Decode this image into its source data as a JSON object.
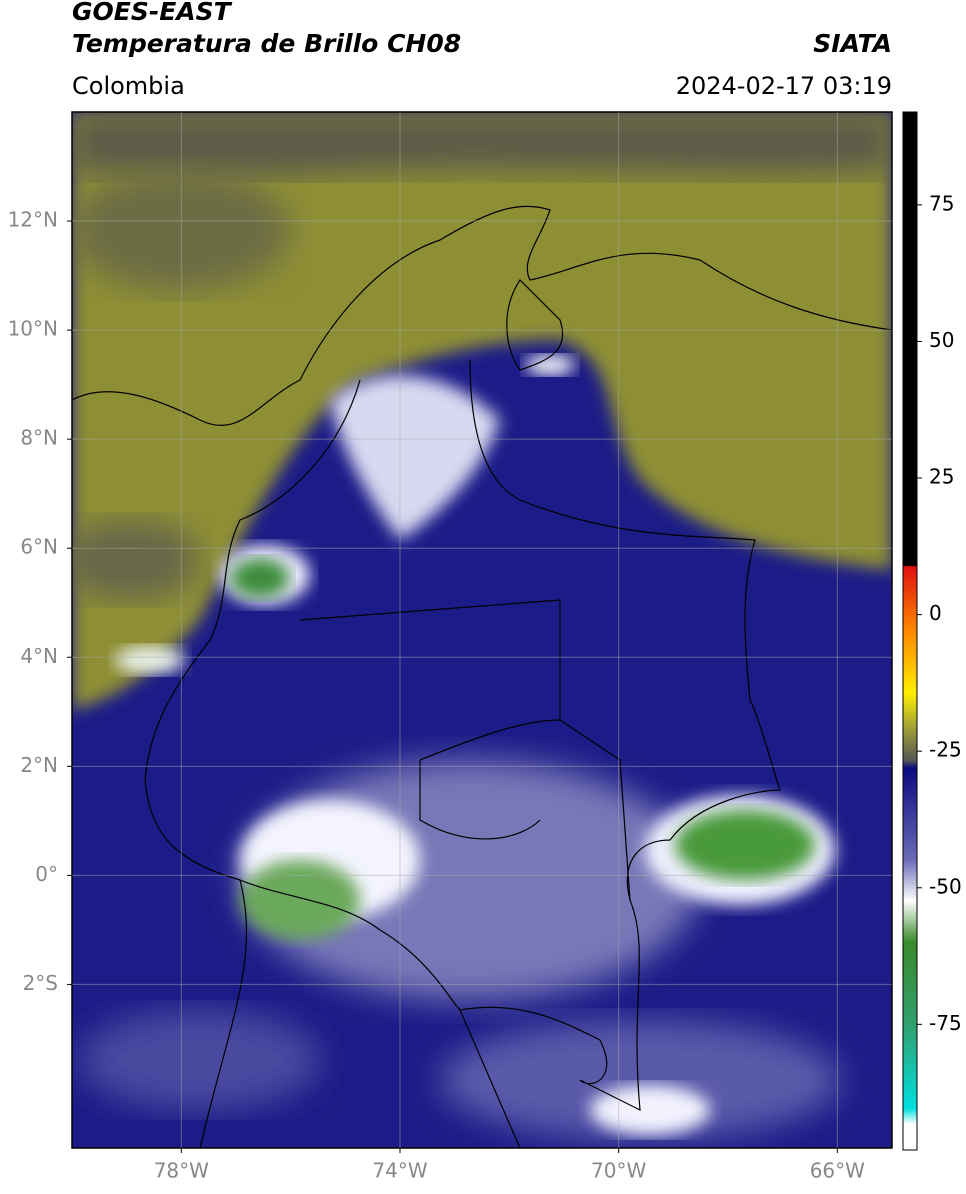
{
  "header": {
    "title": "GOES-EAST",
    "subtitle": "Temperatura de Brillo CH08",
    "source": "SIATA",
    "region": "Colombia",
    "datetime": "2024-02-17 03:19"
  },
  "map": {
    "xlim": [
      -80,
      -65
    ],
    "ylim": [
      -5,
      14
    ],
    "xticks": [
      {
        "value": -78,
        "label": "78°W"
      },
      {
        "value": -74,
        "label": "74°W"
      },
      {
        "value": -70,
        "label": "70°W"
      },
      {
        "value": -66,
        "label": "66°W"
      }
    ],
    "yticks": [
      {
        "value": 12,
        "label": "12°N"
      },
      {
        "value": 10,
        "label": "10°N"
      },
      {
        "value": 8,
        "label": "8°N"
      },
      {
        "value": 6,
        "label": "6°N"
      },
      {
        "value": 4,
        "label": "4°N"
      },
      {
        "value": 2,
        "label": "2°N"
      },
      {
        "value": 0,
        "label": "0°"
      },
      {
        "value": -2,
        "label": "2°S"
      }
    ],
    "grid": true
  },
  "colorbar": {
    "lim": [
      -98,
      92
    ],
    "ticks": [
      75,
      50,
      25,
      0,
      -25,
      -50,
      -75
    ]
  }
}
